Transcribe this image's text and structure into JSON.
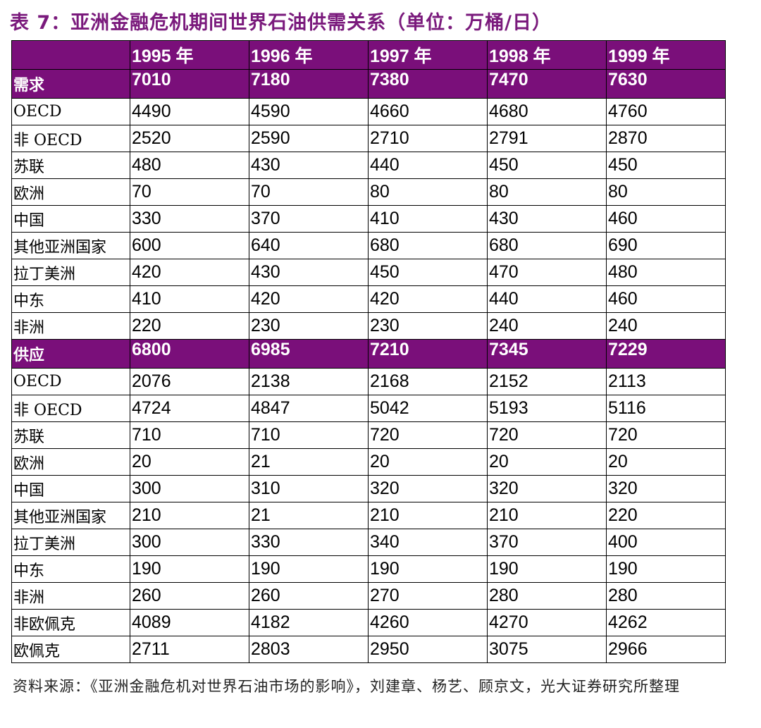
{
  "title": "表 7：亚洲金融危机期间世界石油供需关系（单位：万桶/日）",
  "header": {
    "years": [
      "1995 年",
      "1996 年",
      "1997 年",
      "1998 年",
      "1999 年"
    ]
  },
  "demand": {
    "label": "需求",
    "totals": [
      "7010",
      "7180",
      "7380",
      "7470",
      "7630"
    ],
    "rows": [
      {
        "label": "OECD",
        "values": [
          "4490",
          "4590",
          "4660",
          "4680",
          "4760"
        ]
      },
      {
        "label": "非 OECD",
        "values": [
          "2520",
          "2590",
          "2710",
          "2791",
          "2870"
        ]
      },
      {
        "label": "苏联",
        "values": [
          "480",
          "430",
          "440",
          "450",
          "450"
        ]
      },
      {
        "label": "欧洲",
        "values": [
          "70",
          "70",
          "80",
          "80",
          "80"
        ]
      },
      {
        "label": "中国",
        "values": [
          "330",
          "370",
          "410",
          "430",
          "460"
        ]
      },
      {
        "label": "其他亚洲国家",
        "values": [
          "600",
          "640",
          "680",
          "680",
          "690"
        ]
      },
      {
        "label": "拉丁美洲",
        "values": [
          "420",
          "430",
          "450",
          "470",
          "480"
        ]
      },
      {
        "label": "中东",
        "values": [
          "410",
          "420",
          "420",
          "440",
          "460"
        ]
      },
      {
        "label": "非洲",
        "values": [
          "220",
          "230",
          "230",
          "240",
          "240"
        ]
      }
    ]
  },
  "supply": {
    "label": "供应",
    "totals": [
      "6800",
      "6985",
      "7210",
      "7345",
      "7229"
    ],
    "rows": [
      {
        "label": "OECD",
        "values": [
          "2076",
          "2138",
          "2168",
          "2152",
          "2113"
        ]
      },
      {
        "label": "非 OECD",
        "values": [
          "4724",
          "4847",
          "5042",
          "5193",
          "5116"
        ]
      },
      {
        "label": "苏联",
        "values": [
          "710",
          "710",
          "720",
          "720",
          "720"
        ]
      },
      {
        "label": "欧洲",
        "values": [
          "20",
          "21",
          "20",
          "20",
          "20"
        ]
      },
      {
        "label": "中国",
        "values": [
          "300",
          "310",
          "320",
          "320",
          "320"
        ]
      },
      {
        "label": "其他亚洲国家",
        "values": [
          "210",
          "21",
          "210",
          "210",
          "220"
        ]
      },
      {
        "label": "拉丁美洲",
        "values": [
          "300",
          "330",
          "340",
          "370",
          "400"
        ]
      },
      {
        "label": "中东",
        "values": [
          "190",
          "190",
          "190",
          "190",
          "190"
        ]
      },
      {
        "label": "非洲",
        "values": [
          "260",
          "260",
          "270",
          "280",
          "280"
        ]
      },
      {
        "label": "非欧佩克",
        "values": [
          "4089",
          "4182",
          "4260",
          "4270",
          "4262"
        ]
      },
      {
        "label": "欧佩克",
        "values": [
          "2711",
          "2803",
          "2950",
          "3075",
          "2966"
        ]
      }
    ]
  },
  "source": "资料来源：《亚洲金融危机对世界石油市场的影响》，刘建章、杨艺、顾京文，光大证券研究所整理",
  "colors": {
    "header_bg": "#7a0f7a",
    "title": "#7a1a7c",
    "header_text": "#ffffff"
  }
}
